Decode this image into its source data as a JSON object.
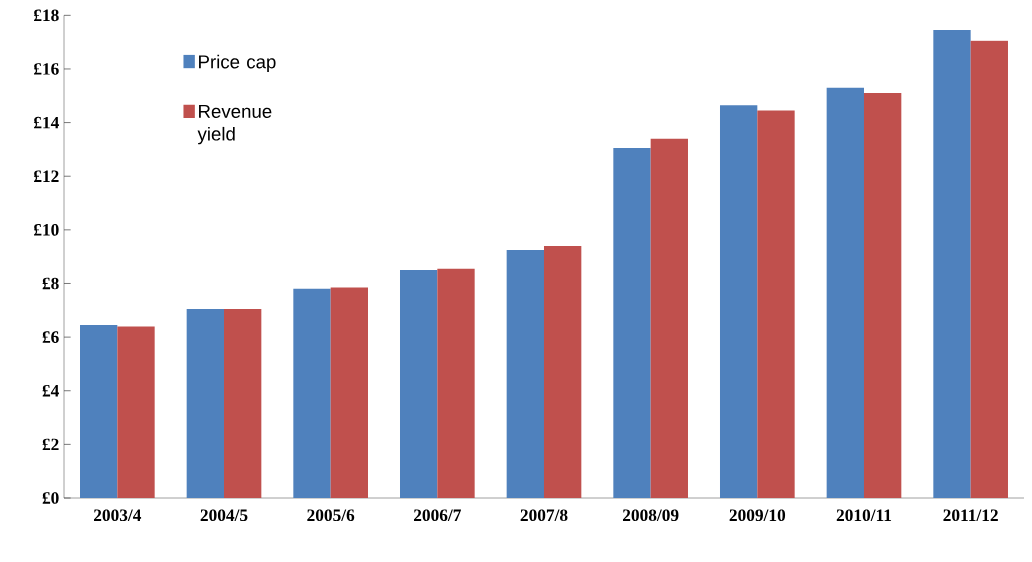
{
  "chart_data": {
    "type": "bar",
    "categories": [
      "2003/4",
      "2004/5",
      "2005/6",
      "2006/7",
      "2007/8",
      "2008/09",
      "2009/10",
      "2010/11",
      "2011/12"
    ],
    "series": [
      {
        "name": "Price cap",
        "color": "#4f81bd",
        "values": [
          6.45,
          7.05,
          7.8,
          8.5,
          9.25,
          13.05,
          14.65,
          15.3,
          17.45
        ]
      },
      {
        "name": "Revenue yield",
        "color": "#c0504d",
        "values": [
          6.4,
          7.05,
          7.85,
          8.55,
          9.4,
          13.4,
          14.45,
          15.1,
          17.05
        ]
      }
    ],
    "ylim": [
      0,
      18
    ],
    "yticks": [
      {
        "value": 0,
        "label": "£0"
      },
      {
        "value": 2,
        "label": "£2"
      },
      {
        "value": 4,
        "label": "£4"
      },
      {
        "value": 6,
        "label": "£6"
      },
      {
        "value": 8,
        "label": "£8"
      },
      {
        "value": 10,
        "label": "£10"
      },
      {
        "value": 12,
        "label": "£12"
      },
      {
        "value": 14,
        "label": "£14"
      },
      {
        "value": 16,
        "label": "£16"
      },
      {
        "value": 18,
        "label": "£18"
      }
    ],
    "grid": false,
    "legend": "top left"
  }
}
